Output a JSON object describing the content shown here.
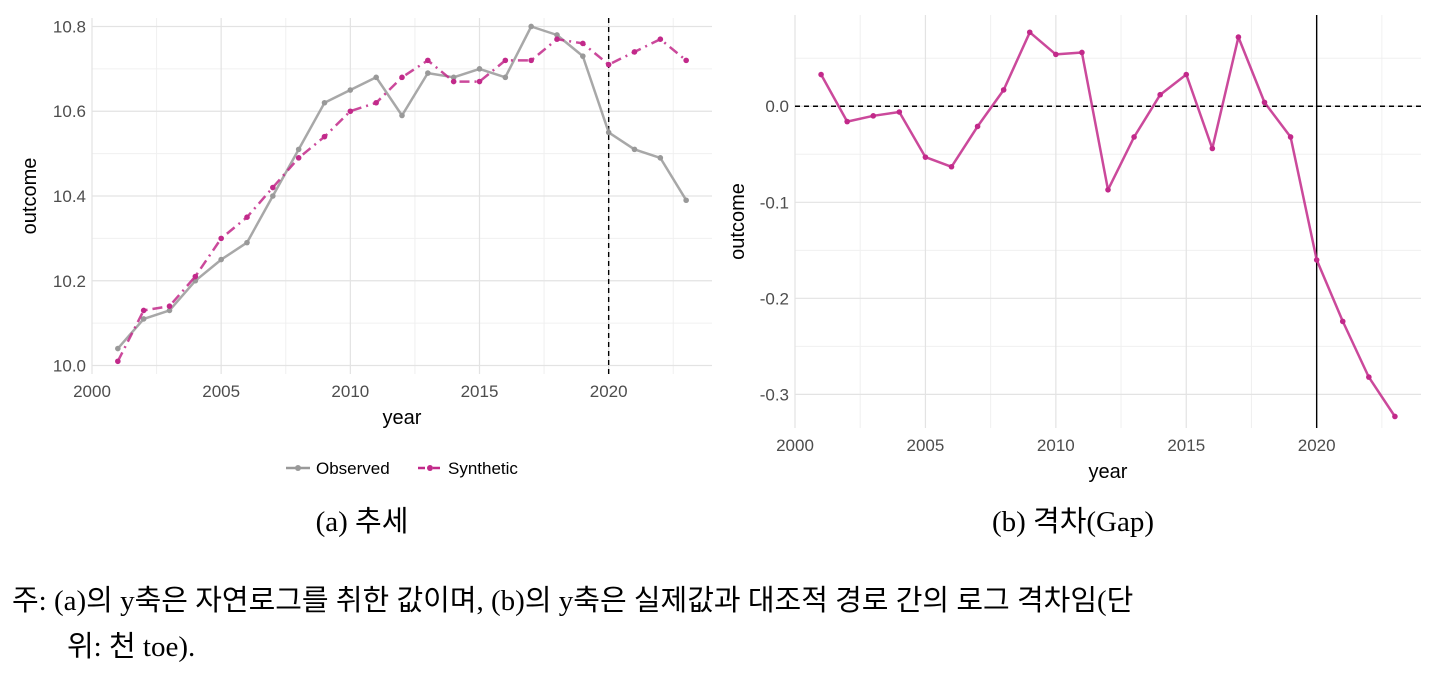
{
  "chart_data": [
    {
      "type": "line",
      "caption": "(a) 추세",
      "xlabel": "year",
      "ylabel": "outcome",
      "xlim": [
        2000,
        2024
      ],
      "ylim": [
        9.98,
        10.82
      ],
      "xticks": [
        2000,
        2005,
        2010,
        2015,
        2020
      ],
      "yticks": [
        10.0,
        10.2,
        10.4,
        10.6,
        10.8
      ],
      "ytick_labels": [
        "10.0",
        "10.2",
        "10.4",
        "10.6",
        "10.8"
      ],
      "grid": true,
      "vline": {
        "x": 2020,
        "style": "dashed"
      },
      "legend_position": "bottom",
      "x": [
        2001,
        2002,
        2003,
        2004,
        2005,
        2006,
        2007,
        2008,
        2009,
        2010,
        2011,
        2012,
        2013,
        2014,
        2015,
        2016,
        2017,
        2018,
        2019,
        2020,
        2021,
        2022,
        2023
      ],
      "series": [
        {
          "name": "Observed",
          "color": "#999999",
          "style": "solid",
          "values": [
            10.04,
            10.11,
            10.13,
            10.2,
            10.25,
            10.29,
            10.4,
            10.51,
            10.62,
            10.65,
            10.68,
            10.59,
            10.69,
            10.68,
            10.7,
            10.68,
            10.8,
            10.78,
            10.73,
            10.55,
            10.51,
            10.49,
            10.39
          ]
        },
        {
          "name": "Synthetic",
          "color": "#C2298A",
          "style": "dashdot",
          "values": [
            10.01,
            10.13,
            10.14,
            10.21,
            10.3,
            10.35,
            10.42,
            10.49,
            10.54,
            10.6,
            10.62,
            10.68,
            10.72,
            10.67,
            10.67,
            10.72,
            10.72,
            10.77,
            10.76,
            10.71,
            10.74,
            10.77,
            10.72
          ]
        }
      ]
    },
    {
      "type": "line",
      "caption": "(b) 격차(Gap)",
      "xlabel": "year",
      "ylabel": "outcome",
      "xlim": [
        2000,
        2024
      ],
      "ylim": [
        -0.335,
        0.095
      ],
      "xticks": [
        2000,
        2005,
        2010,
        2015,
        2020
      ],
      "yticks": [
        0.0,
        -0.1,
        -0.2,
        -0.3
      ],
      "ytick_labels": [
        "0.0",
        "-0.1",
        "-0.2",
        "-0.3"
      ],
      "grid": true,
      "vline": {
        "x": 2020,
        "style": "solid"
      },
      "hline": {
        "y": 0.0,
        "style": "dashed"
      },
      "x": [
        2001,
        2002,
        2003,
        2004,
        2005,
        2006,
        2007,
        2008,
        2009,
        2010,
        2011,
        2012,
        2013,
        2014,
        2015,
        2016,
        2017,
        2018,
        2019,
        2020,
        2021,
        2022,
        2023
      ],
      "series": [
        {
          "color": "#C2298A",
          "style": "solid",
          "values": [
            0.033,
            -0.016,
            -0.01,
            -0.006,
            -0.053,
            -0.063,
            -0.021,
            0.017,
            0.077,
            0.054,
            0.056,
            -0.087,
            -0.032,
            0.012,
            0.033,
            -0.044,
            0.072,
            0.004,
            -0.032,
            -0.16,
            -0.224,
            -0.282,
            -0.323
          ]
        }
      ]
    }
  ],
  "note": {
    "line1": "주: (a)의 y축은 자연로그를 취한 값이며, (b)의 y축은 실제값과 대조적 경로 간의 로그 격차임(단",
    "line2": "위: 천 toe)."
  }
}
